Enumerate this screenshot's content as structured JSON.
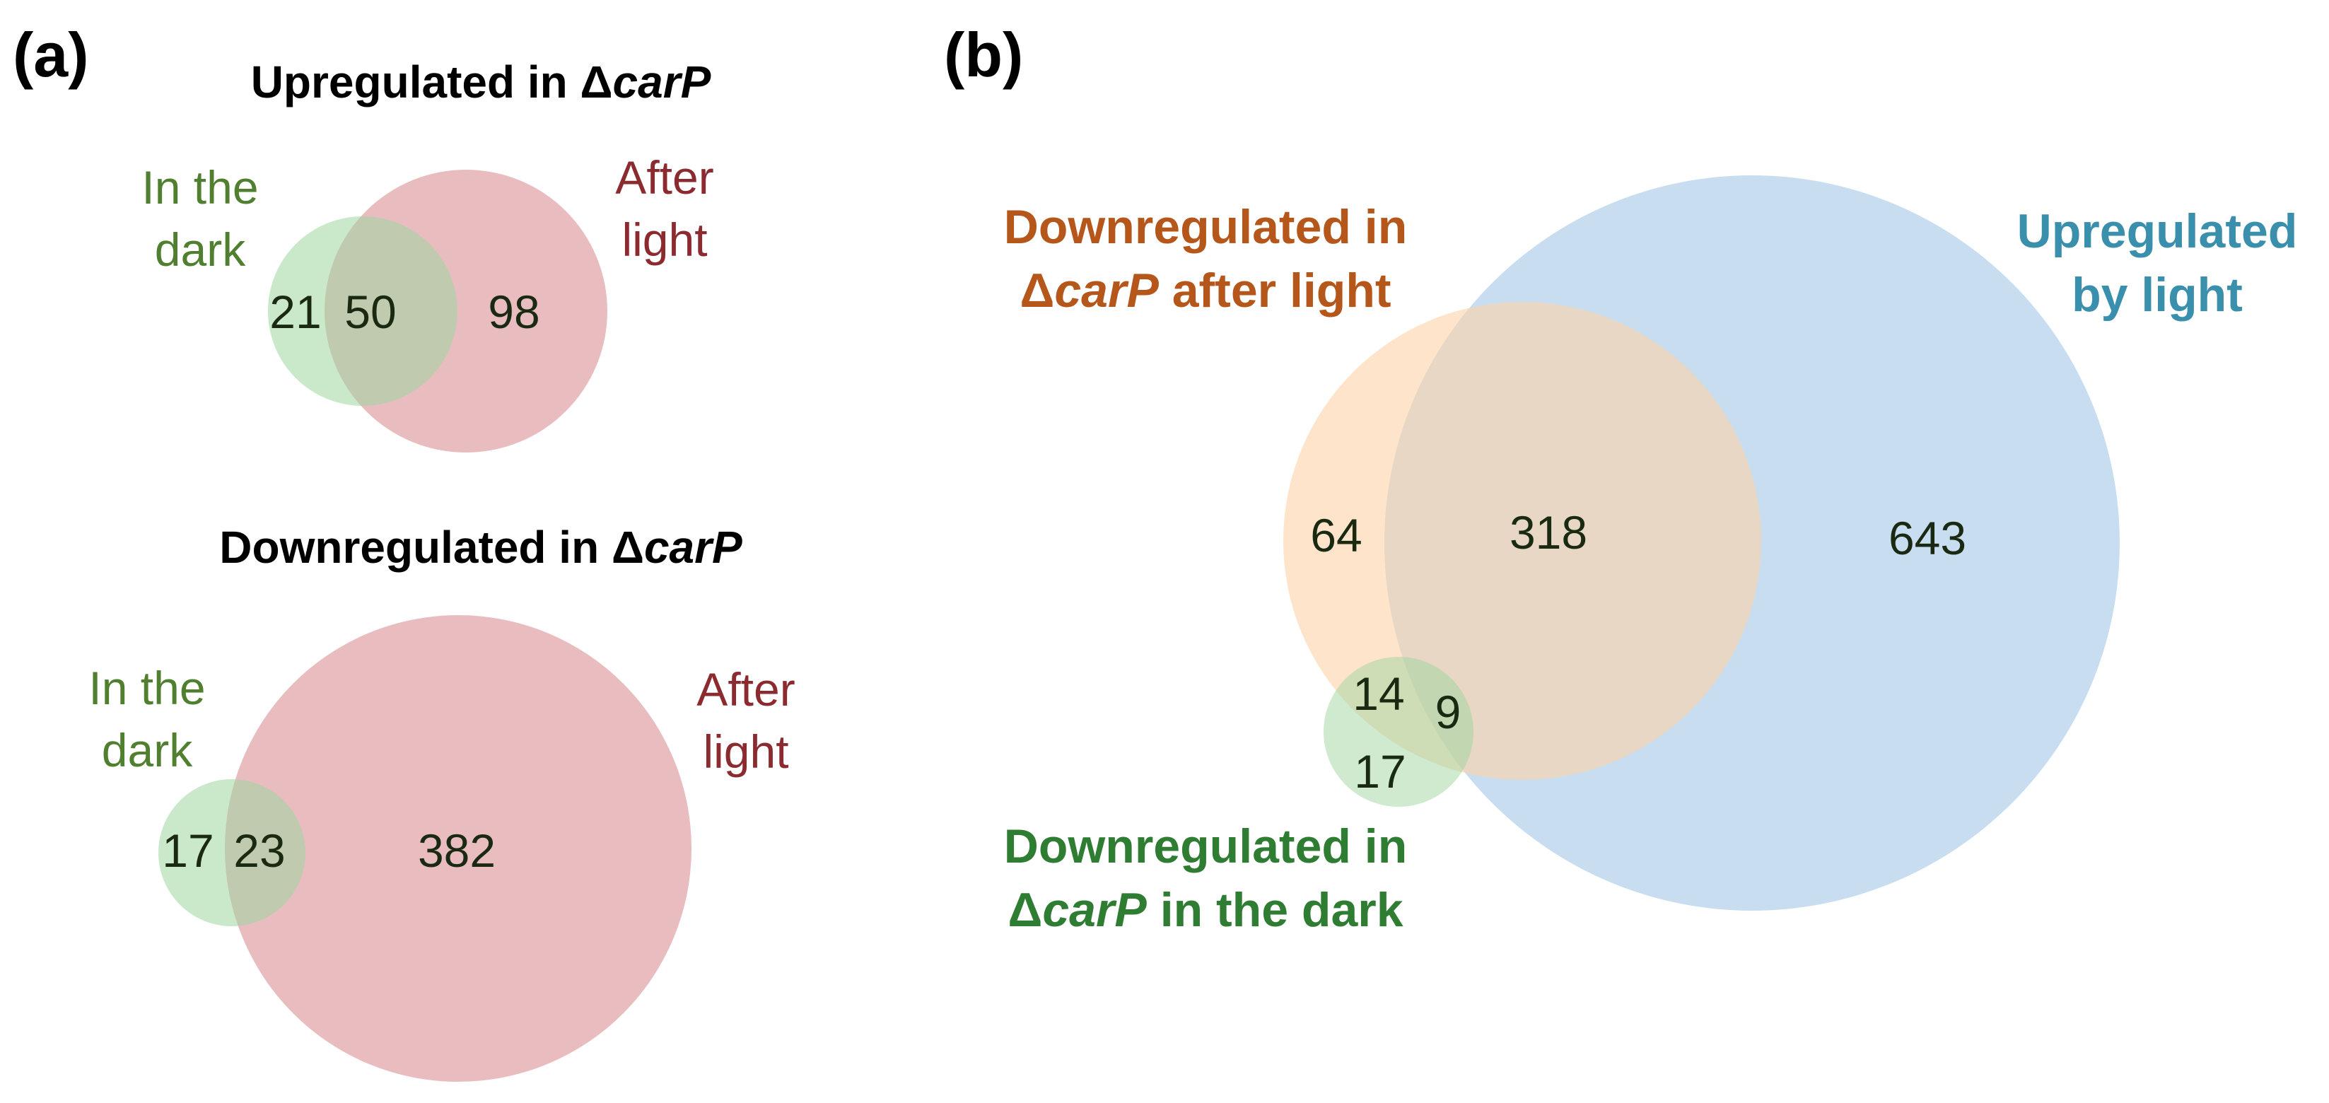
{
  "colors": {
    "green_fill": "#9fd59f",
    "red_fill": "#dc9599",
    "orange_fill": "#fbd2a6",
    "blue_fill": "#a6c9e6",
    "dark_green_text": "#4f7f2f",
    "dark_red_text": "#8b2b30",
    "orange_text": "#b5561a",
    "blue_text": "#3a8fad",
    "bold_green_text": "#2e7d32",
    "count_text": "#1a2a12"
  },
  "panel_a": {
    "label": "(a)",
    "up": {
      "title_prefix": "Upregulated in Δ",
      "title_gene": "carP",
      "dark_label_line1": "In the",
      "dark_label_line2": "dark",
      "light_label_line1": "After",
      "light_label_line2": "light",
      "counts": {
        "dark_only": "21",
        "both": "50",
        "light_only": "98"
      }
    },
    "down": {
      "title_prefix": "Downregulated in Δ",
      "title_gene": "carP",
      "dark_label_line1": "In the",
      "dark_label_line2": "dark",
      "light_label_line1": "After",
      "light_label_line2": "light",
      "counts": {
        "dark_only": "17",
        "both": "23",
        "light_only": "382"
      }
    }
  },
  "panel_b": {
    "label": "(b)",
    "orange_label_line1": "Downregulated in",
    "orange_label_line2_delta": "Δ",
    "orange_label_line2_gene": "carP",
    "orange_label_line2_rest": " after light",
    "blue_label_line1": "Upregulated",
    "blue_label_line2": "by light",
    "green_label_line1": "Downregulated in",
    "green_label_line2_delta": "Δ",
    "green_label_line2_gene": "carP",
    "green_label_line2_rest": " in the dark",
    "counts": {
      "orange_only": "64",
      "orange_blue": "318",
      "blue_only": "643",
      "orange_green": "14",
      "green_blue_orange": "9",
      "green_only": "17"
    }
  }
}
